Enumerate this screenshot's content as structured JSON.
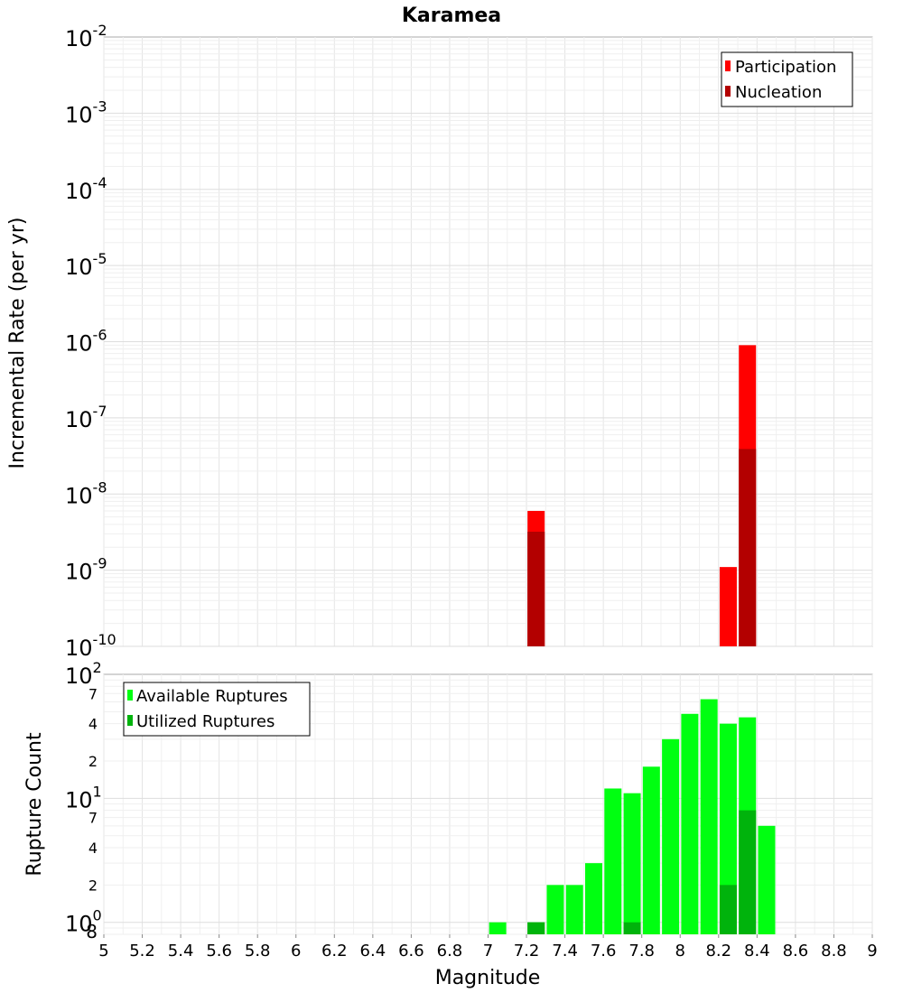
{
  "chart_data": {
    "title": "Karamea",
    "xlabel": "Magnitude",
    "x_ticks": [
      "5",
      "5.2",
      "5.4",
      "5.6",
      "5.8",
      "6",
      "6.2",
      "6.4",
      "6.6",
      "6.8",
      "7",
      "7.2",
      "7.4",
      "7.6",
      "7.8",
      "8",
      "8.2",
      "8.4",
      "8.6",
      "8.8",
      "9"
    ],
    "xlim": [
      5,
      9
    ],
    "top_panel": {
      "type": "bar",
      "ylabel": "Incremental Rate (per yr)",
      "yscale": "log",
      "ylim": [
        1e-10,
        0.01
      ],
      "y_ticks": [
        {
          "base": "10",
          "exp": "-2"
        },
        {
          "base": "10",
          "exp": "-3"
        },
        {
          "base": "10",
          "exp": "-4"
        },
        {
          "base": "10",
          "exp": "-5"
        },
        {
          "base": "10",
          "exp": "-6"
        },
        {
          "base": "10",
          "exp": "-7"
        },
        {
          "base": "10",
          "exp": "-8"
        },
        {
          "base": "10",
          "exp": "-9"
        },
        {
          "base": "10",
          "exp": "-10"
        }
      ],
      "legend_position": "top-right",
      "series": [
        {
          "name": "Participation",
          "color": "#ff0000",
          "x": [
            7.25,
            8.25,
            8.35
          ],
          "values": [
            6e-09,
            1.1e-09,
            9e-07
          ]
        },
        {
          "name": "Nucleation",
          "color": "#b30000",
          "x": [
            7.25,
            8.35
          ],
          "values": [
            3.2e-09,
            3.9e-08
          ]
        }
      ]
    },
    "bottom_panel": {
      "type": "bar",
      "ylabel": "Rupture Count",
      "yscale": "log",
      "ylim": [
        0.8,
        100
      ],
      "y_ticks_major": [
        {
          "base": "10",
          "exp": "2"
        },
        {
          "base": "10",
          "exp": "1"
        },
        {
          "base": "10",
          "exp": "0"
        }
      ],
      "y_ticks_minor": [
        "7",
        "4",
        "2",
        "7",
        "4",
        "2",
        "8"
      ],
      "legend_position": "top-left",
      "series": [
        {
          "name": "Available Ruptures",
          "color": "#00ff11",
          "x": [
            7.05,
            7.25,
            7.35,
            7.45,
            7.55,
            7.65,
            7.75,
            7.85,
            7.95,
            8.05,
            8.15,
            8.25,
            8.35,
            8.45
          ],
          "values": [
            1,
            1,
            2,
            2,
            3,
            12,
            11,
            18,
            30,
            48,
            63,
            40,
            45,
            6
          ]
        },
        {
          "name": "Utilized Ruptures",
          "color": "#00b30c",
          "x": [
            7.25,
            7.75,
            8.25,
            8.35
          ],
          "values": [
            1,
            1,
            2,
            8
          ]
        }
      ]
    }
  }
}
